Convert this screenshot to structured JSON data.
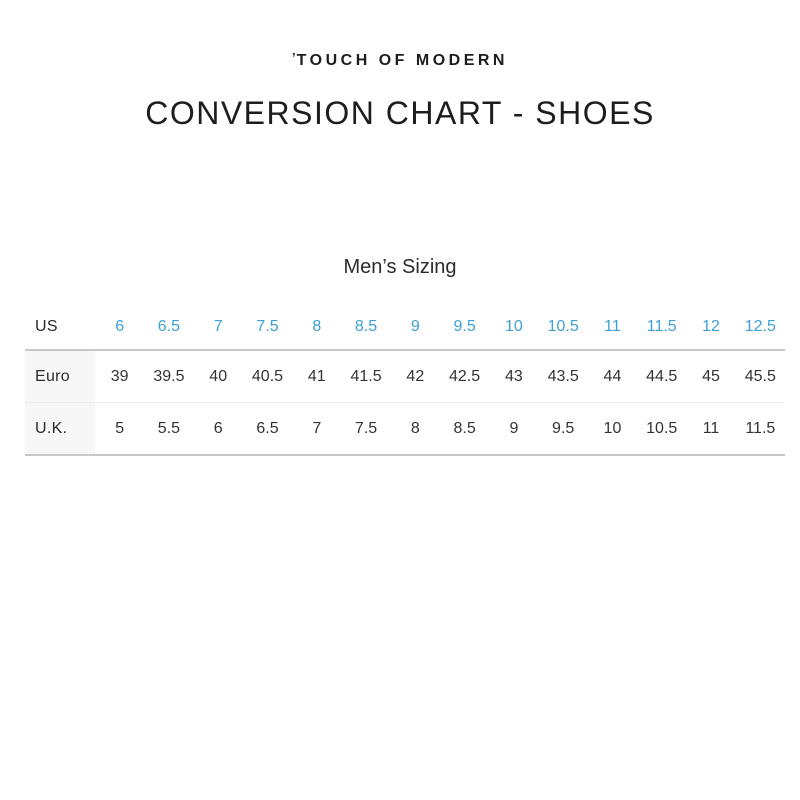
{
  "page": {
    "logo_mark": "’",
    "logo_text": "TOUCH OF MODERN",
    "title": "CONVERSION CHART - SHOES",
    "section_title": "Men’s Sizing"
  },
  "colors": {
    "accent_blue": "#3EA0D6",
    "text_dark": "#2B2B2B",
    "label_column_bg": "#F7F7F7",
    "border_strong": "#C8C8C8",
    "border_light": "#EDEDED"
  },
  "chart_data": {
    "type": "table",
    "title": "Men’s Sizing",
    "rows": [
      {
        "label": "US",
        "values": [
          "6",
          "6.5",
          "7",
          "7.5",
          "8",
          "8.5",
          "9",
          "9.5",
          "10",
          "10.5",
          "11",
          "11.5",
          "12",
          "12.5"
        ]
      },
      {
        "label": "Euro",
        "values": [
          "39",
          "39.5",
          "40",
          "40.5",
          "41",
          "41.5",
          "42",
          "42.5",
          "43",
          "43.5",
          "44",
          "44.5",
          "45",
          "45.5"
        ]
      },
      {
        "label": "U.K.",
        "values": [
          "5",
          "5.5",
          "6",
          "6.5",
          "7",
          "7.5",
          "8",
          "8.5",
          "9",
          "9.5",
          "10",
          "10.5",
          "11",
          "11.5"
        ]
      }
    ]
  }
}
